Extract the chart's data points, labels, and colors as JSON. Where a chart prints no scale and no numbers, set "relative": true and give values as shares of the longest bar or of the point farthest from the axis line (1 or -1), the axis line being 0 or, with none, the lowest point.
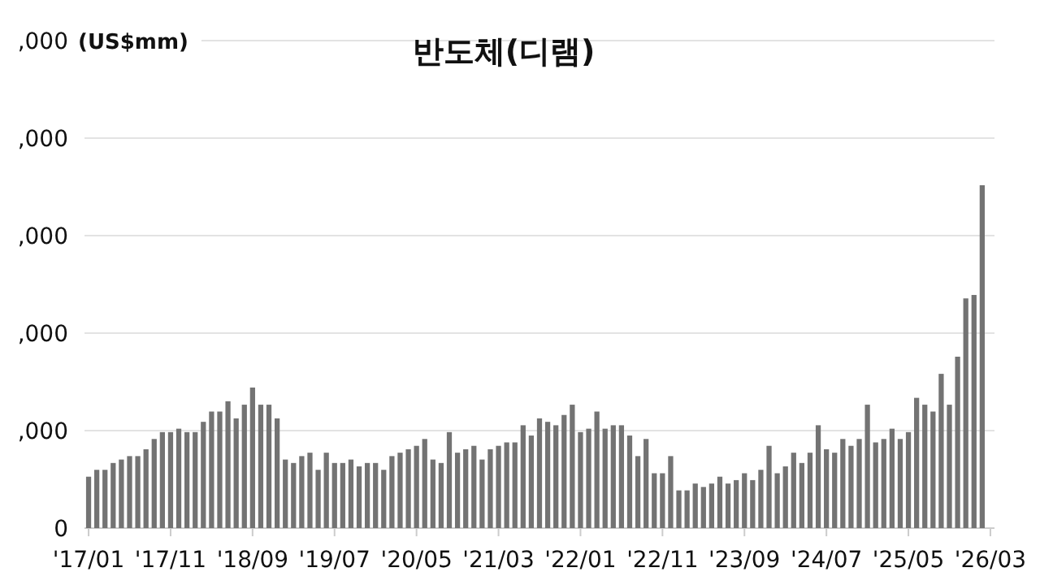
{
  "chart_data": {
    "type": "bar",
    "title": "반도체(디램)",
    "categories": [
      "'17/01",
      null,
      null,
      null,
      null,
      null,
      null,
      null,
      null,
      null,
      "'17/11",
      null,
      null,
      null,
      null,
      null,
      null,
      null,
      null,
      null,
      "'18/09",
      null,
      null,
      null,
      null,
      null,
      null,
      null,
      null,
      null,
      "'19/07",
      null,
      null,
      null,
      null,
      null,
      null,
      null,
      null,
      null,
      "'20/05",
      null,
      null,
      null,
      null,
      null,
      null,
      null,
      null,
      null,
      "'21/03",
      null,
      null,
      null,
      null,
      null,
      null,
      null,
      null,
      null,
      "'22/01",
      null,
      null,
      null,
      null,
      null,
      null,
      null,
      null,
      null,
      "'22/11",
      null,
      null,
      null,
      null,
      null,
      null,
      null,
      null,
      null,
      "'23/09",
      null,
      null,
      null,
      null,
      null,
      null,
      null,
      null,
      null,
      "'24/07",
      null,
      null,
      null,
      null,
      null,
      null,
      null,
      null,
      null,
      "'25/05",
      null,
      null,
      null,
      null,
      null,
      null,
      null,
      null,
      null,
      "'26/03"
    ],
    "values": [
      0.15,
      0.17,
      0.17,
      0.19,
      0.2,
      0.21,
      0.21,
      0.23,
      0.26,
      0.28,
      0.28,
      0.29,
      0.28,
      0.28,
      0.31,
      0.34,
      0.34,
      0.37,
      0.32,
      0.36,
      0.41,
      0.36,
      0.36,
      0.32,
      0.2,
      0.19,
      0.21,
      0.22,
      0.17,
      0.22,
      0.19,
      0.19,
      0.2,
      0.18,
      0.19,
      0.19,
      0.17,
      0.21,
      0.22,
      0.23,
      0.24,
      0.26,
      0.2,
      0.19,
      0.28,
      0.22,
      0.23,
      0.24,
      0.2,
      0.23,
      0.24,
      0.25,
      0.25,
      0.3,
      0.27,
      0.32,
      0.31,
      0.3,
      0.33,
      0.36,
      0.28,
      0.29,
      0.34,
      0.29,
      0.3,
      0.3,
      0.27,
      0.21,
      0.26,
      0.16,
      0.16,
      0.21,
      0.11,
      0.11,
      0.13,
      0.12,
      0.13,
      0.15,
      0.13,
      0.14,
      0.16,
      0.14,
      0.17,
      0.24,
      0.16,
      0.18,
      0.22,
      0.19,
      0.22,
      0.3,
      0.23,
      0.22,
      0.26,
      0.24,
      0.26,
      0.36,
      0.25,
      0.26,
      0.29,
      0.26,
      0.28,
      0.38,
      0.36,
      0.34,
      0.45,
      0.36,
      0.5,
      0.67,
      0.68,
      1,
      null
    ],
    "relative": true,
    "color": "#737373",
    "annotations": [
      ",000",
      ",000",
      ",000",
      ",000",
      ",000",
      "0",
      "(US$mm)"
    ],
    "grid": "y"
  }
}
